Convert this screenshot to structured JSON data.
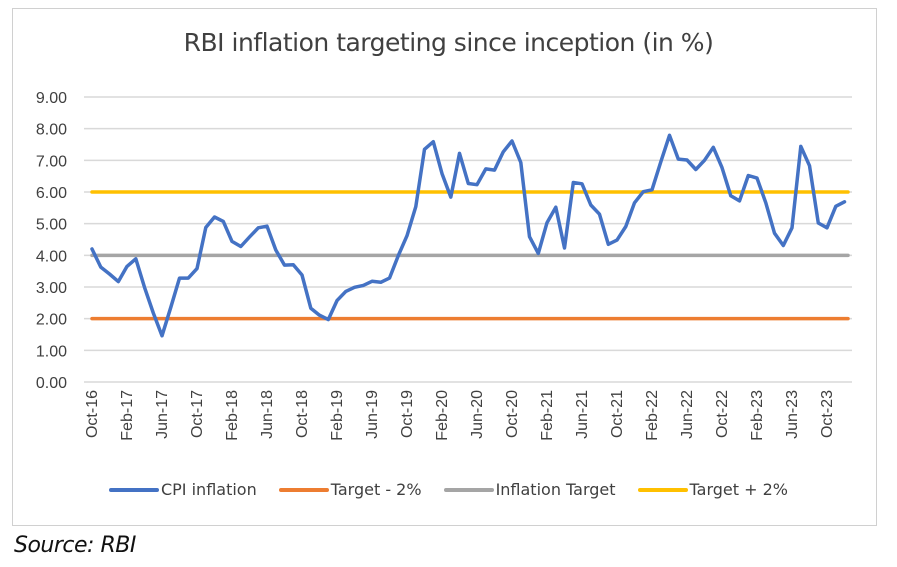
{
  "chart_data": {
    "type": "line",
    "title": "RBI inflation targeting since inception (in %)",
    "xlabel": "",
    "ylabel": "",
    "ylim": [
      0,
      9
    ],
    "yticks": [
      "0.00",
      "1.00",
      "2.00",
      "3.00",
      "4.00",
      "5.00",
      "6.00",
      "7.00",
      "8.00",
      "9.00"
    ],
    "grid": true,
    "legend_position": "bottom",
    "x": [
      "Oct-16",
      "Nov-16",
      "Dec-16",
      "Jan-17",
      "Feb-17",
      "Mar-17",
      "Apr-17",
      "May-17",
      "Jun-17",
      "Jul-17",
      "Aug-17",
      "Sep-17",
      "Oct-17",
      "Nov-17",
      "Dec-17",
      "Jan-18",
      "Feb-18",
      "Mar-18",
      "Apr-18",
      "May-18",
      "Jun-18",
      "Jul-18",
      "Aug-18",
      "Sep-18",
      "Oct-18",
      "Nov-18",
      "Dec-18",
      "Jan-19",
      "Feb-19",
      "Mar-19",
      "Apr-19",
      "May-19",
      "Jun-19",
      "Jul-19",
      "Aug-19",
      "Sep-19",
      "Oct-19",
      "Nov-19",
      "Dec-19",
      "Jan-20",
      "Feb-20",
      "Mar-20",
      "Apr-20",
      "May-20",
      "Jun-20",
      "Jul-20",
      "Aug-20",
      "Sep-20",
      "Oct-20",
      "Nov-20",
      "Dec-20",
      "Jan-21",
      "Feb-21",
      "Mar-21",
      "Apr-21",
      "May-21",
      "Jun-21",
      "Jul-21",
      "Aug-21",
      "Sep-21",
      "Oct-21",
      "Nov-21",
      "Dec-21",
      "Jan-22",
      "Feb-22",
      "Mar-22",
      "Apr-22",
      "May-22",
      "Jun-22",
      "Jul-22",
      "Aug-22",
      "Sep-22",
      "Oct-22",
      "Nov-22",
      "Dec-22",
      "Jan-23",
      "Feb-23",
      "Mar-23",
      "Apr-23",
      "May-23",
      "Jun-23",
      "Jul-23",
      "Aug-23",
      "Sep-23",
      "Oct-23",
      "Nov-23",
      "Dec-23"
    ],
    "xtick_labels": [
      "Oct-16",
      "Feb-17",
      "Jun-17",
      "Oct-17",
      "Feb-18",
      "Jun-18",
      "Oct-18",
      "Feb-19",
      "Jun-19",
      "Oct-19",
      "Feb-20",
      "Jun-20",
      "Oct-20",
      "Feb-21",
      "Jun-21",
      "Oct-21",
      "Feb-22",
      "Jun-22",
      "Oct-22",
      "Feb-23",
      "Jun-23",
      "Oct-23"
    ],
    "series": [
      {
        "name": "CPI inflation",
        "color": "#4472C4",
        "values": [
          4.2,
          3.63,
          3.41,
          3.17,
          3.65,
          3.89,
          2.99,
          2.18,
          1.46,
          2.36,
          3.28,
          3.28,
          3.58,
          4.88,
          5.21,
          5.07,
          4.44,
          4.28,
          4.58,
          4.87,
          4.92,
          4.17,
          3.69,
          3.7,
          3.38,
          2.33,
          2.11,
          1.97,
          2.57,
          2.86,
          2.99,
          3.05,
          3.18,
          3.15,
          3.28,
          3.99,
          4.62,
          5.54,
          7.35,
          7.59,
          6.58,
          5.84,
          7.22,
          6.27,
          6.23,
          6.73,
          6.69,
          7.27,
          7.61,
          6.93,
          4.59,
          4.06,
          5.03,
          5.52,
          4.23,
          6.3,
          6.26,
          5.59,
          5.3,
          4.35,
          4.48,
          4.91,
          5.66,
          6.01,
          6.07,
          6.95,
          7.79,
          7.04,
          7.01,
          6.71,
          7.0,
          7.41,
          6.77,
          5.88,
          5.72,
          6.52,
          6.44,
          5.66,
          4.7,
          4.31,
          4.87,
          7.44,
          6.83,
          5.02,
          4.87,
          5.55,
          5.69
        ]
      },
      {
        "name": "Target - 2%",
        "color": "#ED7D31",
        "constant": 2
      },
      {
        "name": "Inflation Target",
        "color": "#A5A5A5",
        "constant": 4
      },
      {
        "name": "Target + 2%",
        "color": "#FFC000",
        "constant": 6
      }
    ]
  },
  "legend": {
    "items": [
      "CPI inflation",
      "Target - 2%",
      "Inflation Target",
      "Target + 2%"
    ]
  },
  "source_note": "Source: RBI"
}
